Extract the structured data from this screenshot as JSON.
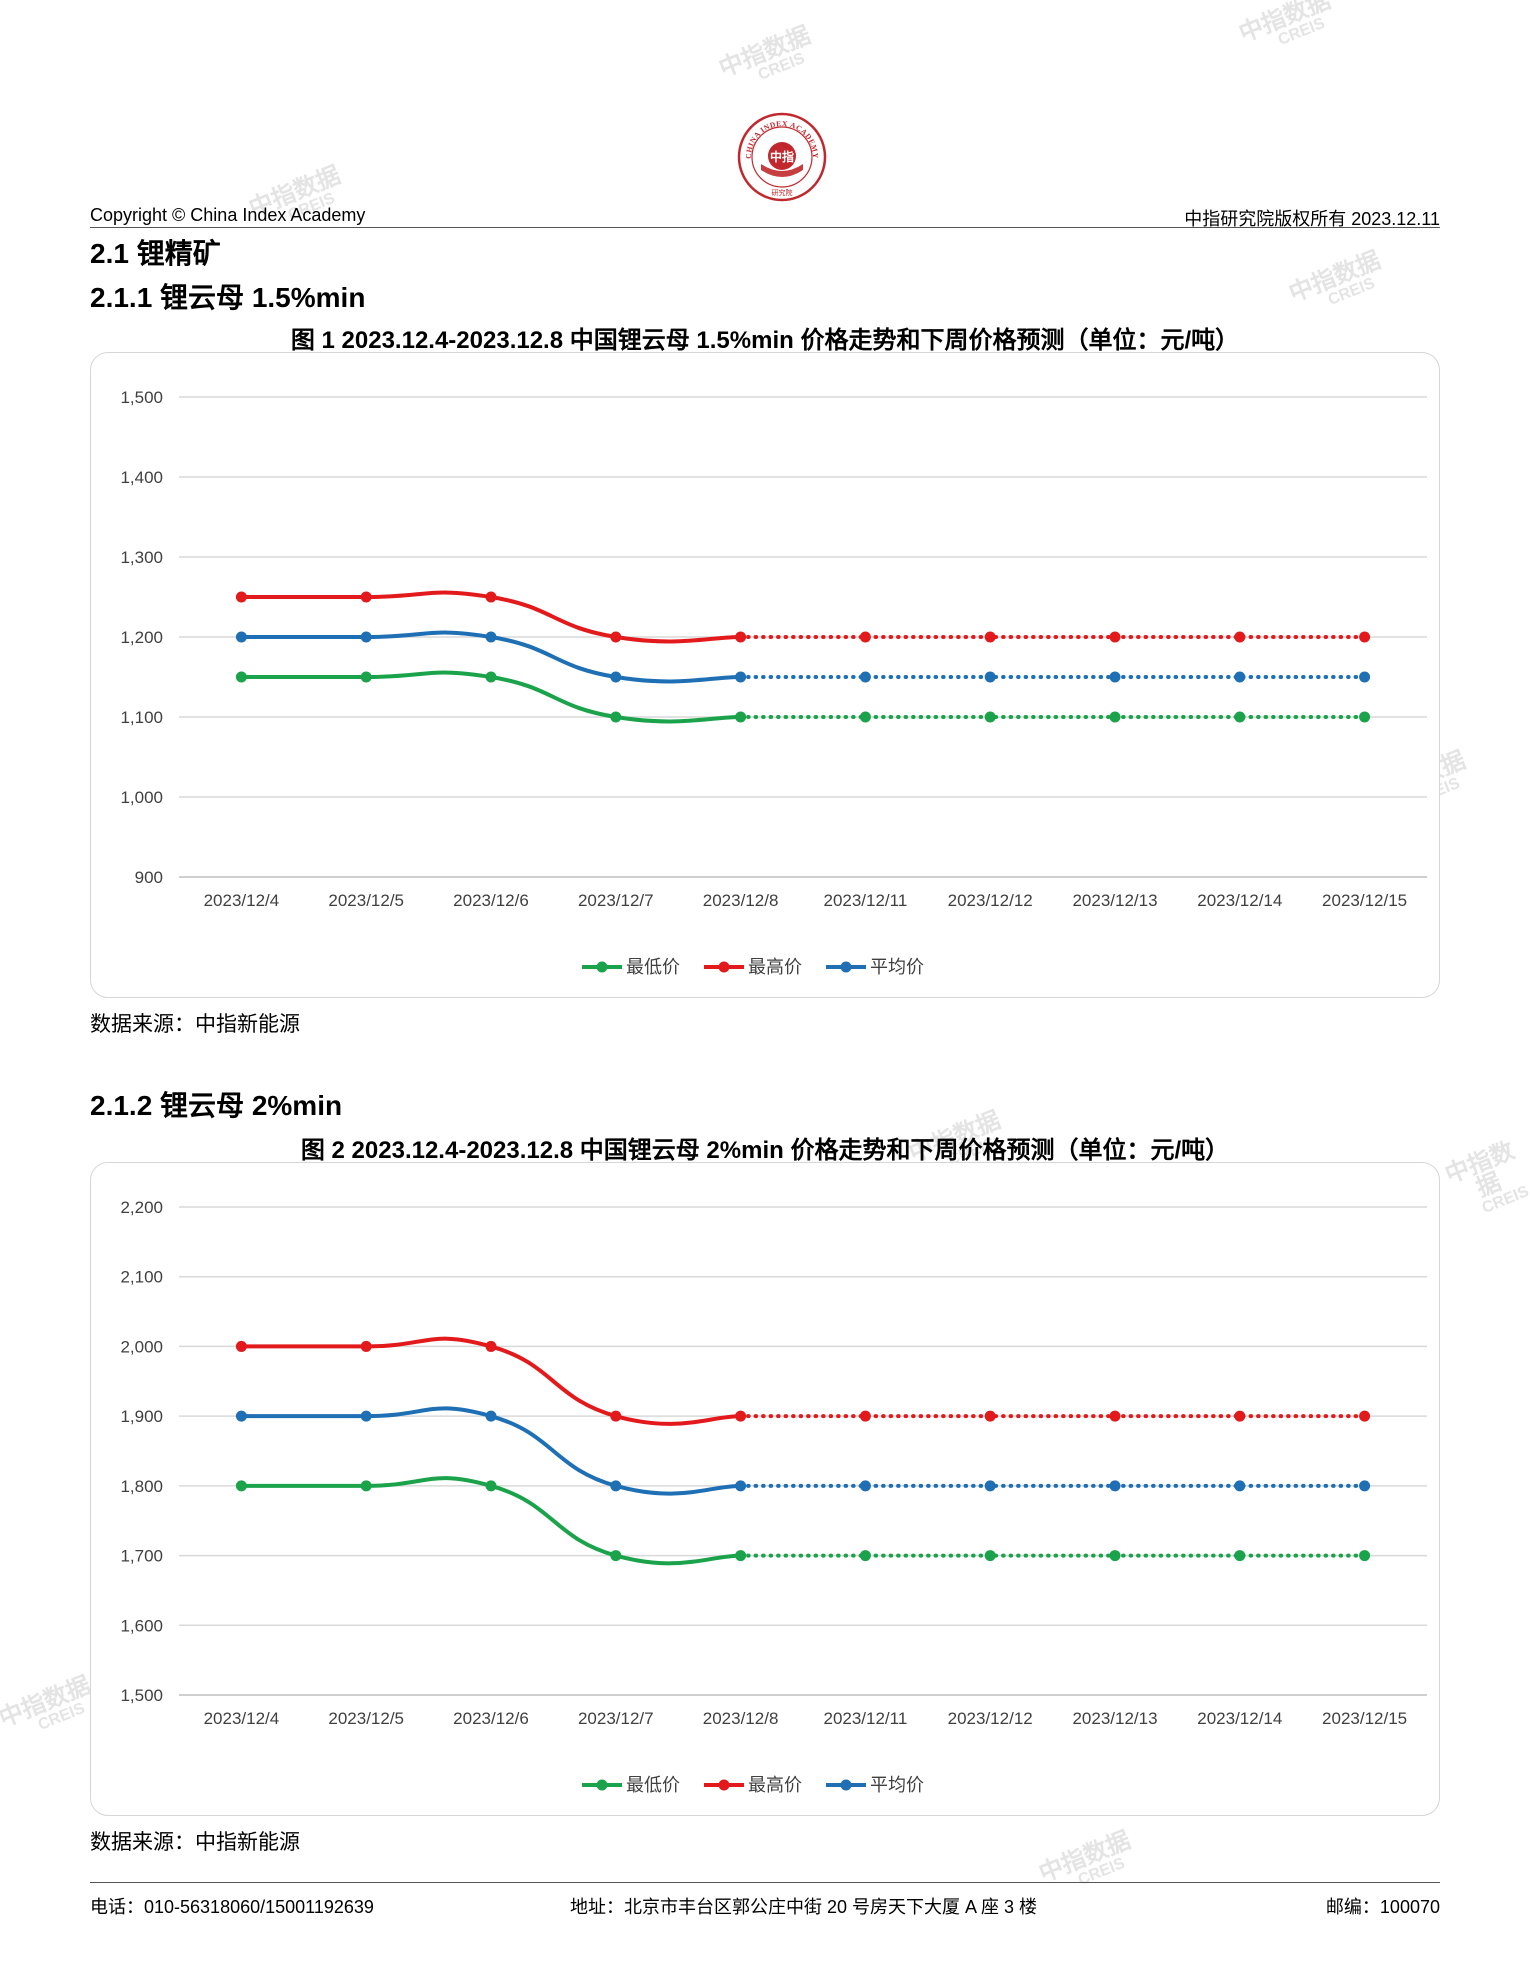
{
  "header": {
    "logo_text": "CHINA INDEX ACADEMY",
    "logo_mark": "中指",
    "logo_sub": "研究院",
    "left": "Copyright © China Index Academy",
    "right": "中指研究院版权所有 2023.12.11"
  },
  "section": {
    "title": "2.1 锂精矿"
  },
  "figures": [
    {
      "heading": "2.1.1 锂云母 1.5%min",
      "title": "图 1 2023.12.4-2023.12.8 中国锂云母 1.5%min 价格走势和下周价格预测（单位：元/吨）",
      "source": "数据来源：中指新能源"
    },
    {
      "heading": "2.1.2 锂云母 2%min",
      "title": "图 2 2023.12.4-2023.12.8 中国锂云母 2%min 价格走势和下周价格预测（单位：元/吨）",
      "source": "数据来源：中指新能源"
    }
  ],
  "chart_data": [
    {
      "type": "line",
      "categories": [
        "2023/12/4",
        "2023/12/5",
        "2023/12/6",
        "2023/12/7",
        "2023/12/8",
        "2023/12/11",
        "2023/12/12",
        "2023/12/13",
        "2023/12/14",
        "2023/12/15"
      ],
      "actual_count": 5,
      "ylim": [
        900,
        1500
      ],
      "yticks": [
        900,
        1000,
        1100,
        1200,
        1300,
        1400,
        1500
      ],
      "ytick_labels": [
        "900",
        "1,000",
        "1,100",
        "1,200",
        "1,300",
        "1,400",
        "1,500"
      ],
      "grid": true,
      "legend_position": "bottom",
      "series": [
        {
          "name": "最低价",
          "color": "#1aa34a",
          "values": [
            1150,
            1150,
            1150,
            1100,
            1100,
            1100,
            1100,
            1100,
            1100,
            1100
          ]
        },
        {
          "name": "最高价",
          "color": "#e31a1c",
          "values": [
            1250,
            1250,
            1250,
            1200,
            1200,
            1200,
            1200,
            1200,
            1200,
            1200
          ]
        },
        {
          "name": "平均价",
          "color": "#1f6fb5",
          "values": [
            1200,
            1200,
            1200,
            1150,
            1150,
            1150,
            1150,
            1150,
            1150,
            1150
          ]
        }
      ]
    },
    {
      "type": "line",
      "categories": [
        "2023/12/4",
        "2023/12/5",
        "2023/12/6",
        "2023/12/7",
        "2023/12/8",
        "2023/12/11",
        "2023/12/12",
        "2023/12/13",
        "2023/12/14",
        "2023/12/15"
      ],
      "actual_count": 5,
      "ylim": [
        1500,
        2200
      ],
      "yticks": [
        1500,
        1600,
        1700,
        1800,
        1900,
        2000,
        2100,
        2200
      ],
      "ytick_labels": [
        "1,500",
        "1,600",
        "1,700",
        "1,800",
        "1,900",
        "2,000",
        "2,100",
        "2,200"
      ],
      "grid": true,
      "legend_position": "bottom",
      "series": [
        {
          "name": "最低价",
          "color": "#1aa34a",
          "values": [
            1800,
            1800,
            1800,
            1700,
            1700,
            1700,
            1700,
            1700,
            1700,
            1700
          ]
        },
        {
          "name": "最高价",
          "color": "#e31a1c",
          "values": [
            2000,
            2000,
            2000,
            1900,
            1900,
            1900,
            1900,
            1900,
            1900,
            1900
          ]
        },
        {
          "name": "平均价",
          "color": "#1f6fb5",
          "values": [
            1900,
            1900,
            1900,
            1800,
            1800,
            1800,
            1800,
            1800,
            1800,
            1800
          ]
        }
      ]
    }
  ],
  "footer": {
    "phone": "电话：010-56318060/15001192639",
    "address": "地址：北京市丰台区郭公庄中街 20 号房天下大厦 A 座 3 楼",
    "postcode": "邮编：100070"
  },
  "watermark": {
    "cn": "中指数据",
    "en": "CREIS"
  }
}
